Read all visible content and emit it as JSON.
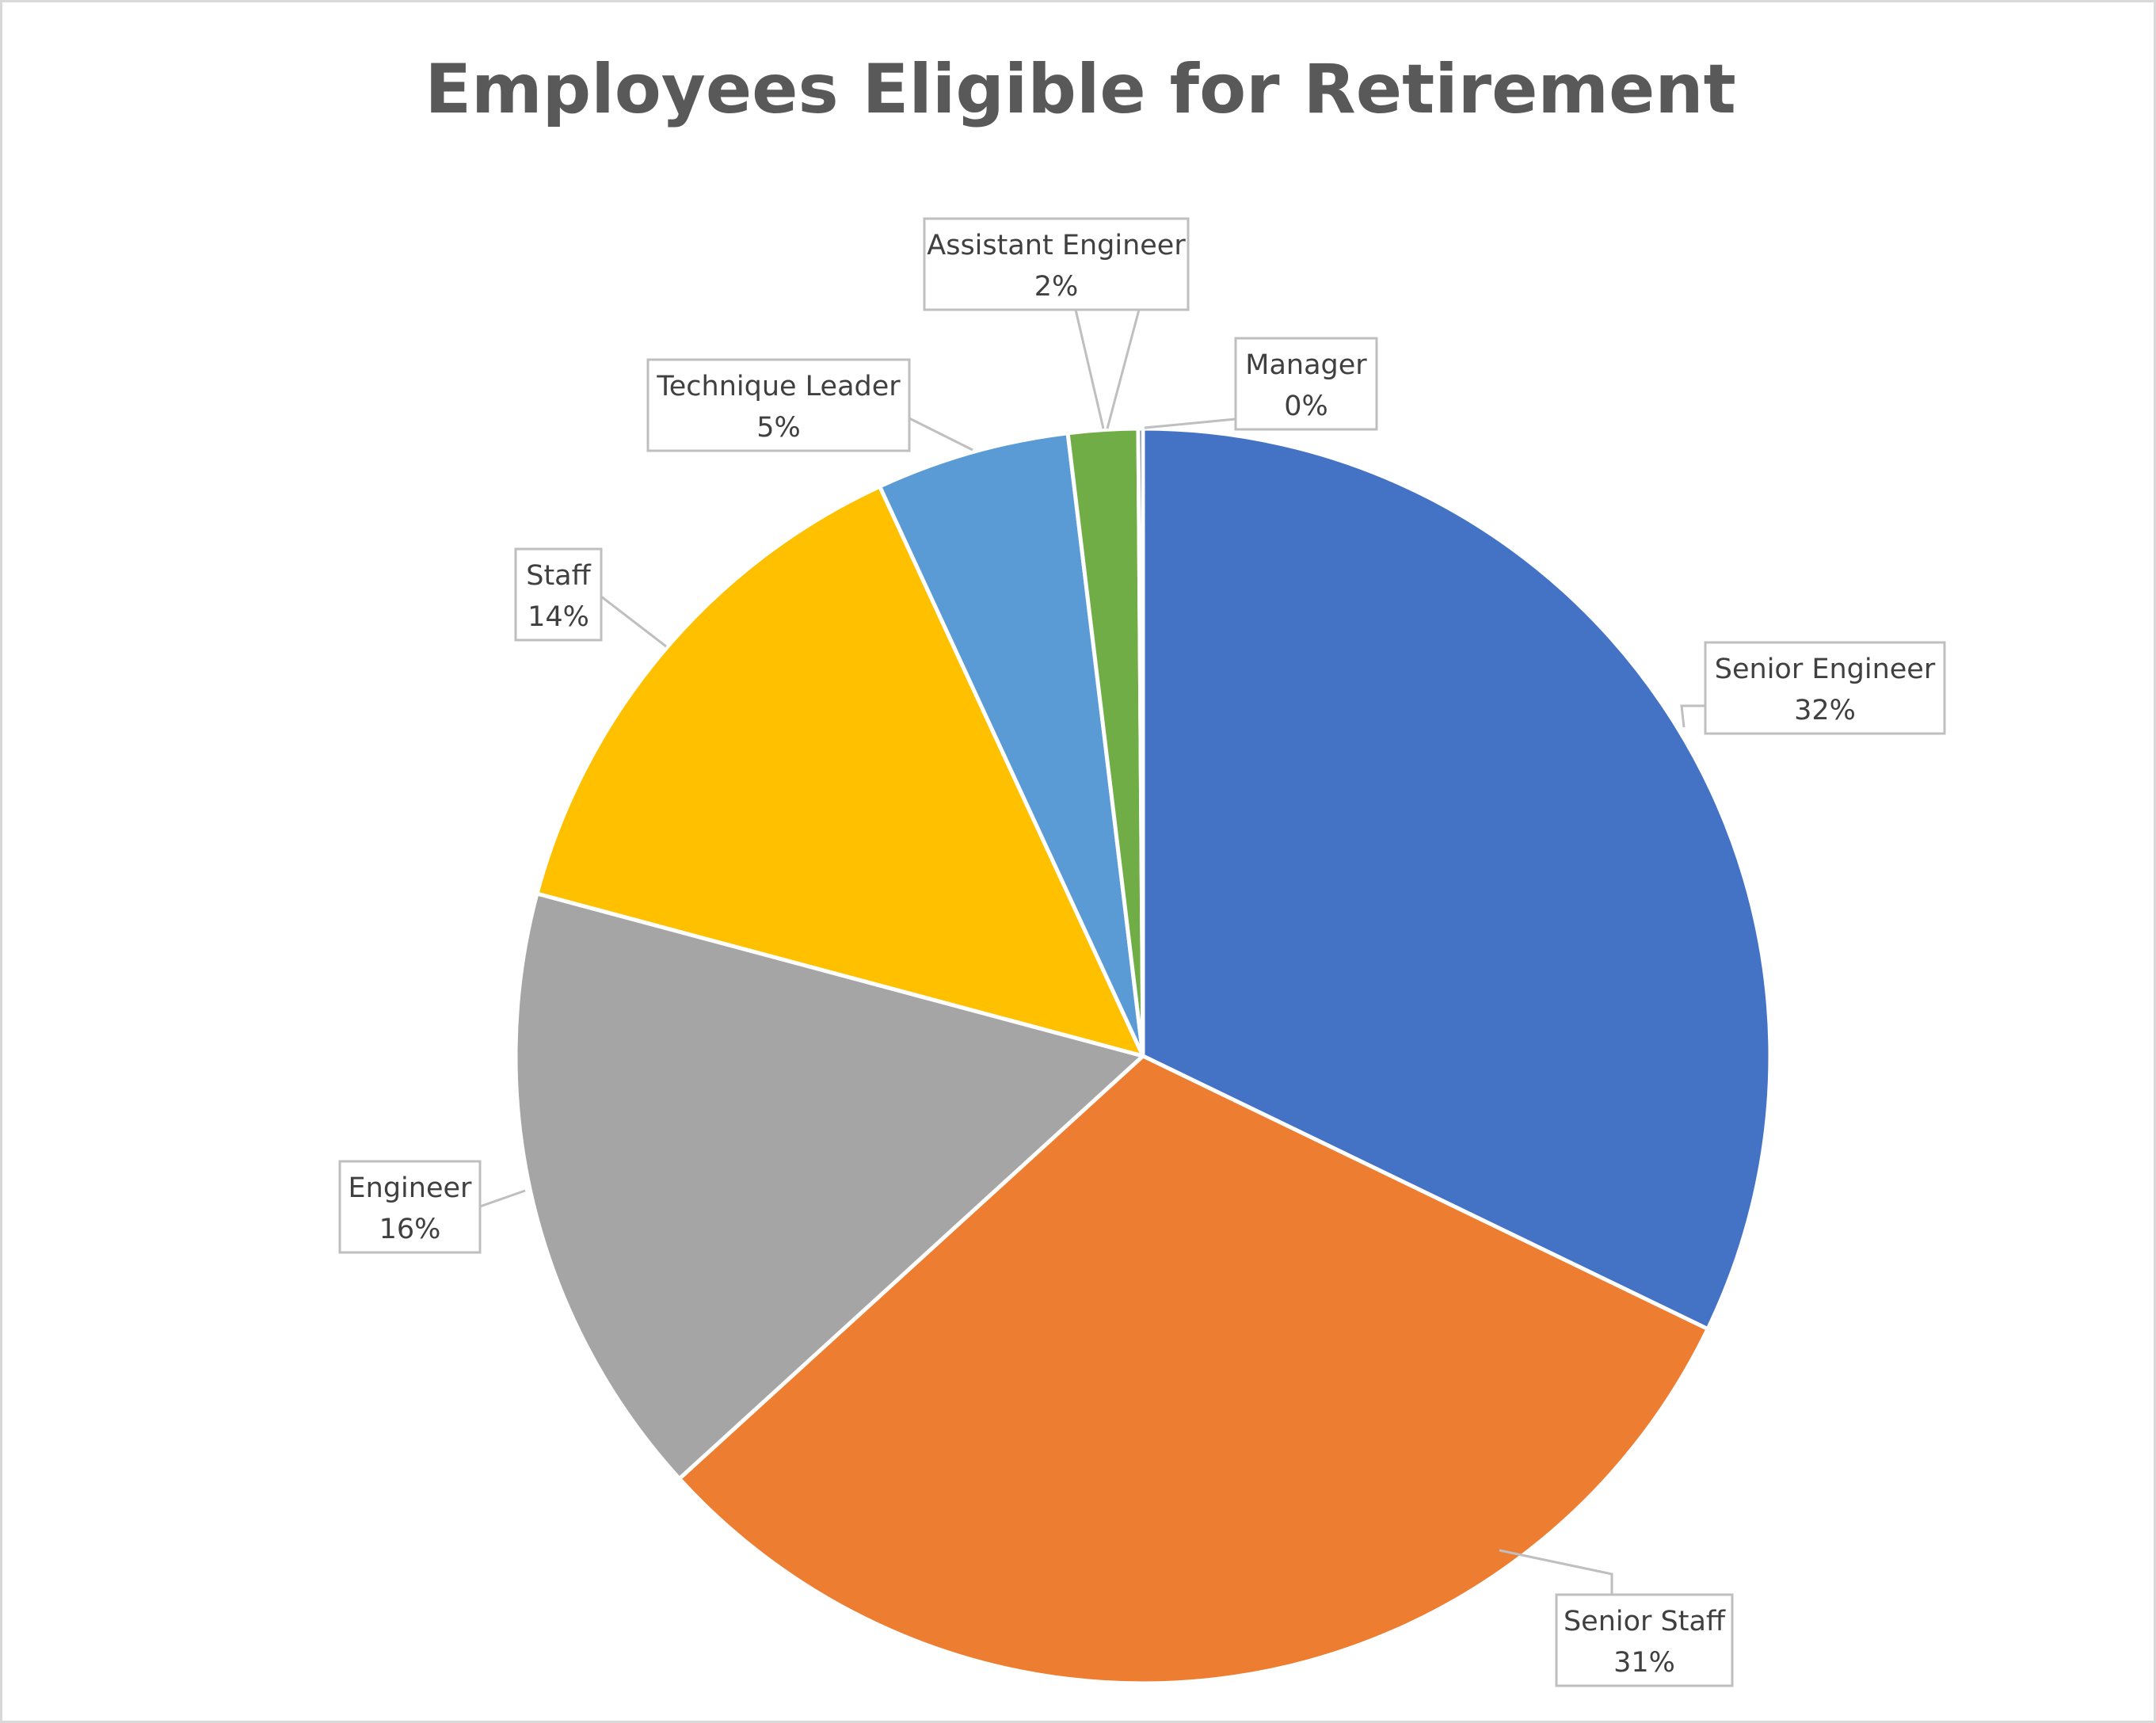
{
  "colors": {
    "background": "#ffffff",
    "title": "#595959",
    "border": "#d9d9d9",
    "label_text": "#404040",
    "callout_border": "#bfbfbf"
  },
  "chart_data": {
    "type": "pie",
    "title": "Employees Eligible for Retirement",
    "legend": "none",
    "slices": [
      {
        "category": "Senior Engineer",
        "value": 32,
        "label": "32%",
        "color": "#4472c4"
      },
      {
        "category": "Senior Staff",
        "value": 31,
        "label": "31%",
        "color": "#ed7d31"
      },
      {
        "category": "Engineer",
        "value": 16,
        "label": "16%",
        "color": "#a5a5a5"
      },
      {
        "category": "Staff",
        "value": 14,
        "label": "14%",
        "color": "#ffc000"
      },
      {
        "category": "Technique Leader",
        "value": 5,
        "label": "5%",
        "color": "#5b9bd5"
      },
      {
        "category": "Assistant Engineer",
        "value": 2,
        "label": "2%",
        "color": "#70ad47"
      },
      {
        "category": "Manager",
        "value": 0,
        "label": "0%",
        "color": "#264478"
      }
    ]
  }
}
